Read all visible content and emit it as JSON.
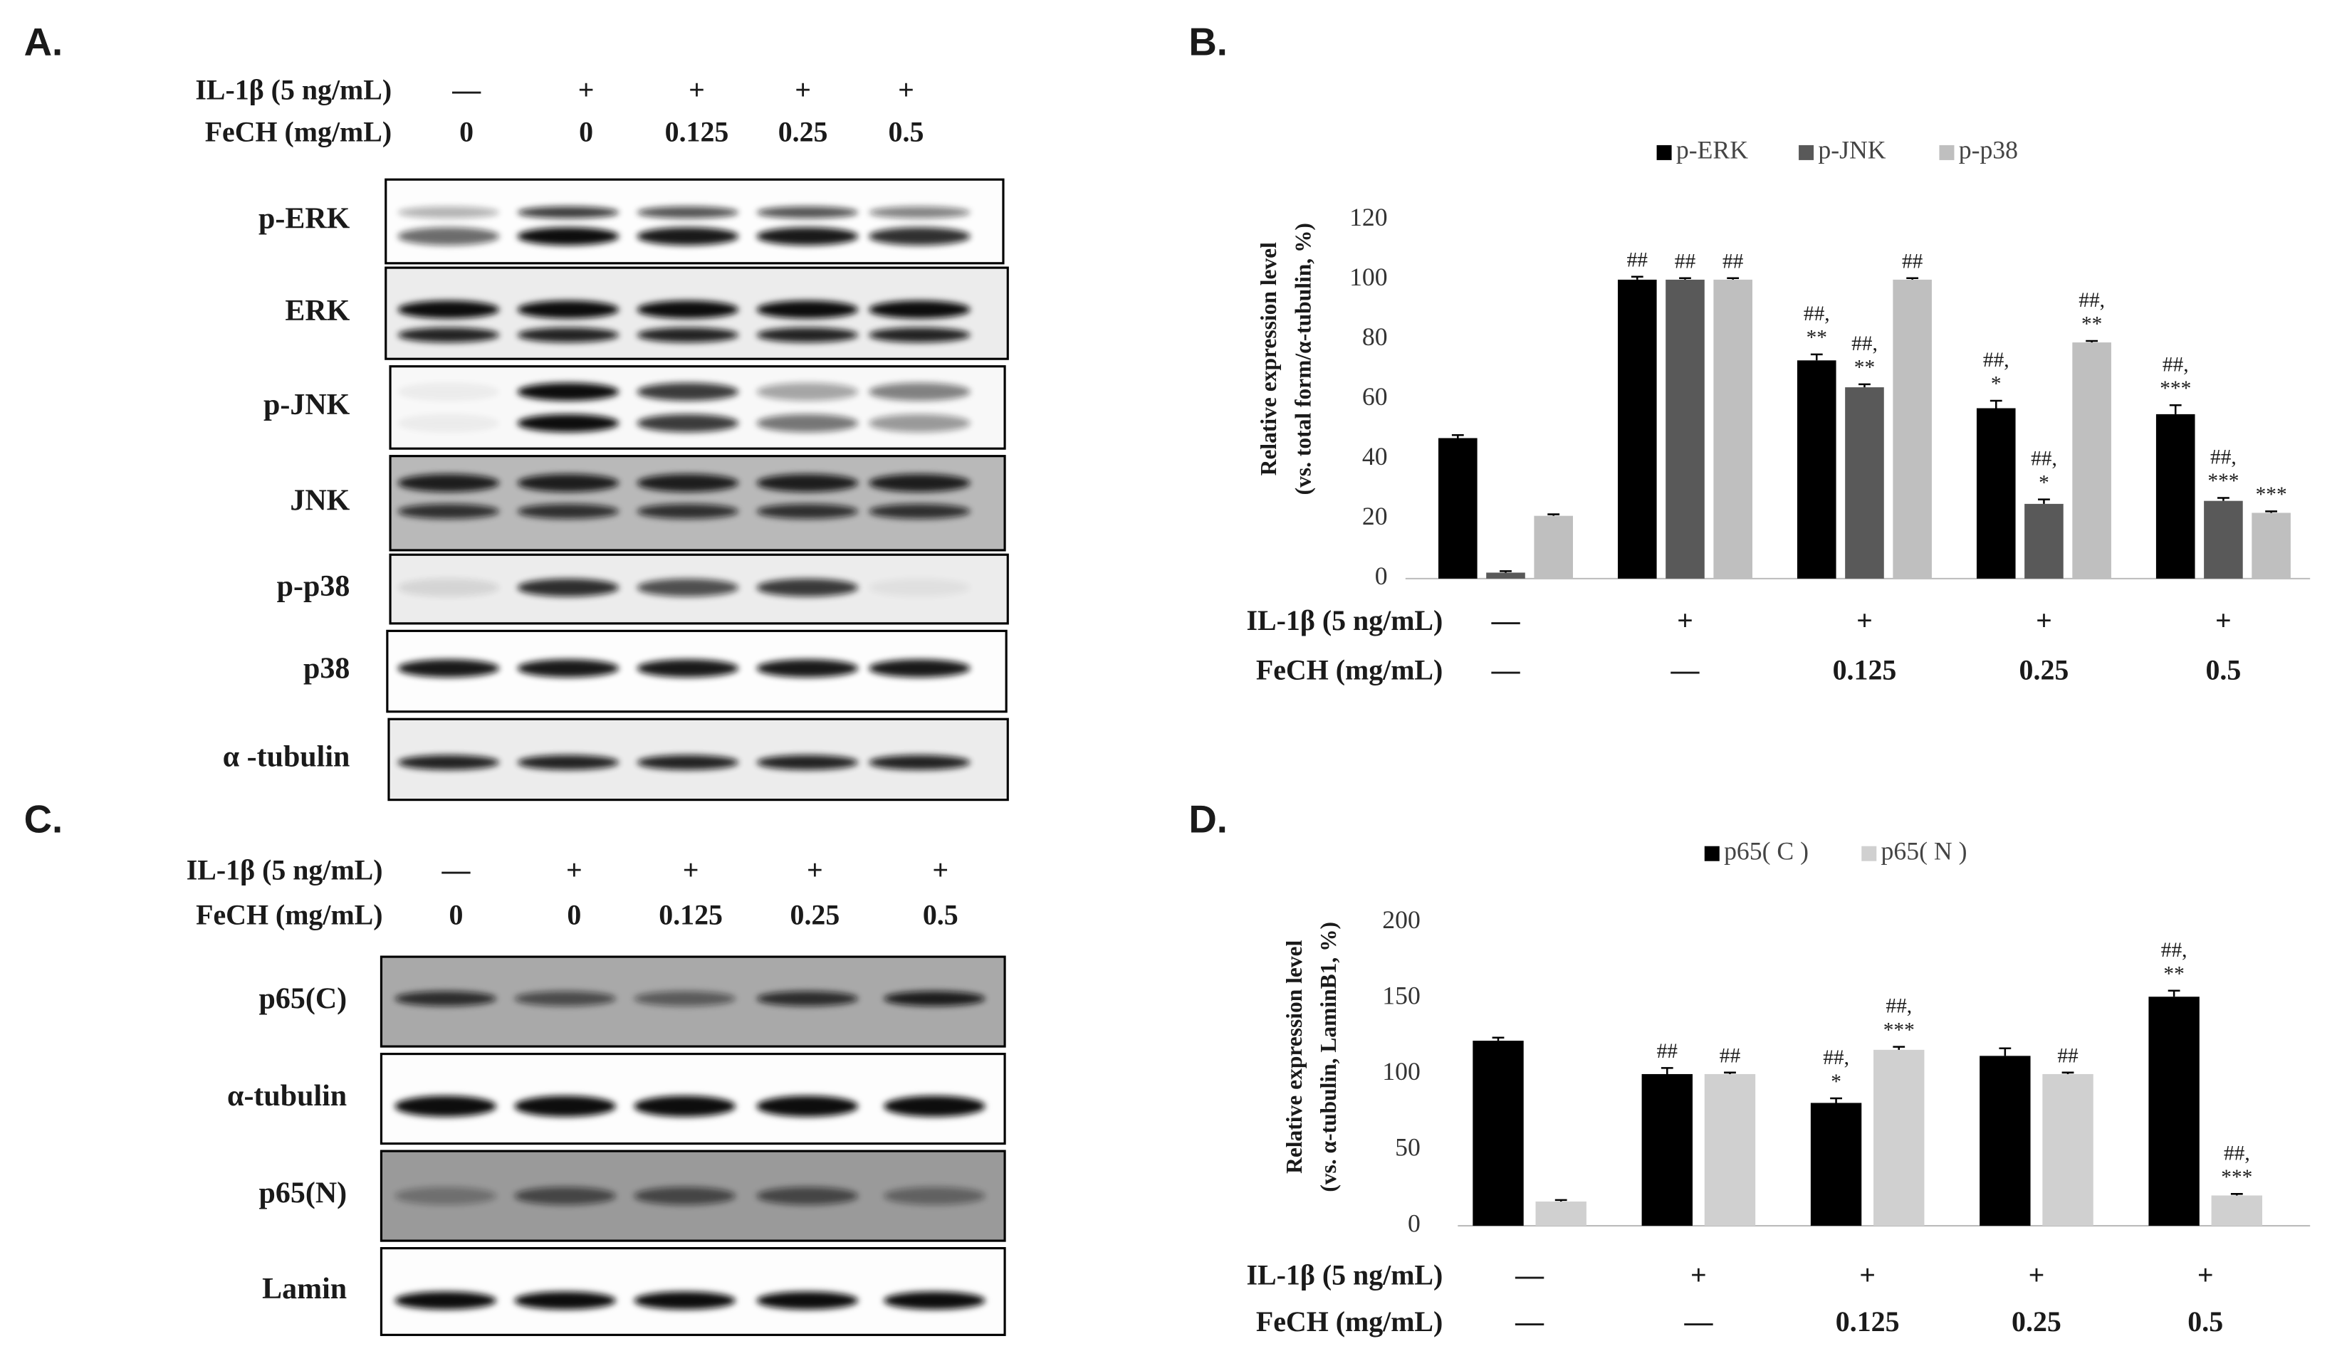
{
  "panels": {
    "a": {
      "letter": "A.",
      "treatments": [
        {
          "label": "IL-1β (5 ng/mL)",
          "values": [
            "—",
            "+",
            "+",
            "+",
            "+"
          ]
        },
        {
          "label": "FeCH (mg/mL)",
          "values": [
            "0",
            "0",
            "0.125",
            "0.25",
            "0.5"
          ]
        }
      ],
      "blots": [
        "p-ERK",
        "ERK",
        "p-JNK",
        "JNK",
        "p-p38",
        "p38",
        "α -tubulin"
      ]
    },
    "c": {
      "letter": "C.",
      "treatments": [
        {
          "label": "IL-1β (5 ng/mL)",
          "values": [
            "—",
            "+",
            "+",
            "+",
            "+"
          ]
        },
        {
          "label": "FeCH (mg/mL)",
          "values": [
            "0",
            "0",
            "0.125",
            "0.25",
            "0.5"
          ]
        }
      ],
      "blots": [
        "p65(C)",
        "α-tubulin",
        "p65(N)",
        "Lamin"
      ]
    }
  },
  "chart_data": [
    {
      "type": "bar",
      "letter": "B.",
      "y_label": [
        "Relative expression level",
        "(vs. total form/α-tubulin, %)"
      ],
      "treatments": [
        {
          "label": "IL-1β (5 ng/mL)",
          "values": [
            "—",
            "+",
            "+",
            "+",
            "+"
          ]
        },
        {
          "label": "FeCH (mg/mL)",
          "values": [
            "—",
            "—",
            "0.125",
            "0.25",
            "0.5"
          ]
        }
      ],
      "ylim": [
        0,
        120
      ],
      "yticks": [
        0,
        20,
        40,
        60,
        80,
        100,
        120
      ],
      "grid": false,
      "legend": "top",
      "series": [
        {
          "name": "p-ERK",
          "color": "#000000",
          "values": [
            47,
            100,
            73,
            57,
            55
          ],
          "errors": [
            1,
            1,
            2,
            2.5,
            3
          ],
          "annotations": [
            null,
            [
              "##"
            ],
            [
              "##,",
              "**"
            ],
            [
              "##,",
              "*"
            ],
            [
              "##,",
              "***"
            ]
          ]
        },
        {
          "name": "p-JNK",
          "color": "#595959",
          "values": [
            2,
            100,
            64,
            25,
            26
          ],
          "errors": [
            0.5,
            0.5,
            1,
            1.5,
            1
          ],
          "annotations": [
            null,
            [
              "##"
            ],
            [
              "##,",
              "**"
            ],
            [
              "##,",
              "*"
            ],
            [
              "##,",
              "***"
            ]
          ]
        },
        {
          "name": "p-p38",
          "color": "#bfbfbf",
          "values": [
            21,
            100,
            100,
            79,
            22
          ],
          "errors": [
            0.5,
            0.5,
            0.5,
            0.5,
            0.5
          ],
          "annotations": [
            null,
            [
              "##"
            ],
            [
              "##"
            ],
            [
              "##,",
              "**"
            ],
            [
              "***"
            ]
          ]
        }
      ]
    },
    {
      "type": "bar",
      "letter": "D.",
      "y_label": [
        "Relative expression level",
        "(vs. α-tubulin, LaminB1, %)"
      ],
      "treatments": [
        {
          "label": "IL-1β (5 ng/mL)",
          "values": [
            "—",
            "+",
            "+",
            "+",
            "+"
          ]
        },
        {
          "label": "FeCH (mg/mL)",
          "values": [
            "—",
            "—",
            "0.125",
            "0.25",
            "0.5"
          ]
        }
      ],
      "ylim": [
        0,
        200
      ],
      "yticks": [
        0,
        50,
        100,
        150,
        200
      ],
      "grid": false,
      "legend": "top",
      "series": [
        {
          "name": "p65( C )",
          "color": "#000000",
          "values": [
            122,
            100,
            81,
            112,
            151
          ],
          "errors": [
            2,
            4,
            3,
            5,
            4
          ],
          "annotations": [
            null,
            [
              "##"
            ],
            [
              "##,",
              "*"
            ],
            null,
            [
              "##,",
              "**"
            ]
          ]
        },
        {
          "name": "p65( N )",
          "color": "#d0d0d0",
          "values": [
            16,
            100,
            116,
            100,
            20
          ],
          "errors": [
            1,
            1,
            2,
            1,
            1
          ],
          "annotations": [
            null,
            [
              "##"
            ],
            [
              "##,",
              "***"
            ],
            [
              "##"
            ],
            [
              "##,",
              "***"
            ]
          ]
        }
      ]
    }
  ]
}
